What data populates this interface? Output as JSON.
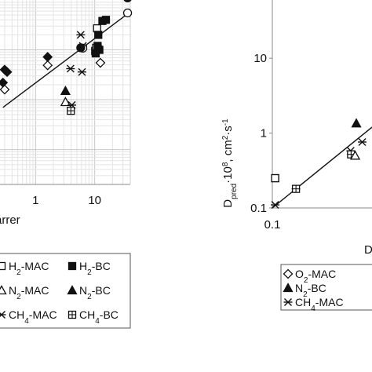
{
  "chart_data": [
    {
      "type": "scatter",
      "scale": "log-log",
      "grid": true,
      "xlabel": "arrer",
      "ylabel": "",
      "xlim": [
        0.25,
        40
      ],
      "ylim": [
        0.02,
        100
      ],
      "x_ticks": [
        {
          "value": 1,
          "label": "1"
        },
        {
          "value": 10,
          "label": "10"
        }
      ],
      "y_ticks": [],
      "trendline": {
        "x": [
          0.28,
          40
        ],
        "y": [
          0.7,
          58
        ]
      },
      "series": [
        {
          "name": "H2-MAC",
          "label_parts": [
            "H",
            "2",
            "-MAC"
          ],
          "marker": "square-open",
          "points": [
            [
              11,
              27
            ],
            [
              10.2,
              9.5
            ],
            [
              10.6,
              11
            ]
          ]
        },
        {
          "name": "H2-BC",
          "label_parts": [
            "H",
            "2",
            "-BC"
          ],
          "marker": "square-filled",
          "points": [
            [
              10.4,
              8.5
            ],
            [
              11.2,
              12
            ],
            [
              12,
              10
            ],
            [
              13.5,
              38
            ],
            [
              15.5,
              40
            ],
            [
              11.5,
              20
            ]
          ]
        },
        {
          "name": "N2-MAC",
          "label_parts": [
            "N",
            "2",
            "-MAC"
          ],
          "marker": "triangle-open",
          "points": [
            [
              3.2,
              0.9
            ]
          ]
        },
        {
          "name": "N2-BC",
          "label_parts": [
            "N",
            "2",
            "-BC"
          ],
          "marker": "triangle-filled",
          "points": [
            [
              3.2,
              1.5
            ]
          ]
        },
        {
          "name": "CH4-MAC",
          "label_parts": [
            "CH",
            "4",
            "-MAC"
          ],
          "marker": "star-x",
          "points": [
            [
              5.8,
              20
            ],
            [
              6.3,
              12
            ],
            [
              3.9,
              4.2
            ],
            [
              6.1,
              3.6
            ],
            [
              4.1,
              0.78
            ]
          ]
        },
        {
          "name": "CH4-BC",
          "label_parts": [
            "CH",
            "4",
            "-BC"
          ],
          "marker": "square-hatched",
          "points": [
            [
              3.95,
              0.6
            ]
          ]
        },
        {
          "name": "",
          "marker": "diamond-open",
          "points": [
            [
              0.3,
              1.6
            ],
            [
              1.6,
              4.9
            ],
            [
              12.5,
              5.5
            ]
          ]
        },
        {
          "name": "",
          "marker": "diamond-filled",
          "points": [
            [
              0.28,
              2.2
            ],
            [
              0.33,
              3.6
            ],
            [
              1.6,
              7.2
            ],
            [
              0.3,
              4.0
            ]
          ]
        },
        {
          "name": "",
          "marker": "circle-open",
          "points": [
            [
              36,
              55
            ],
            [
              6.3,
              10.8
            ]
          ]
        },
        {
          "name": "",
          "marker": "circle-filled",
          "points": [
            [
              36,
              110
            ],
            [
              11.5,
              11
            ],
            [
              5.8,
              11
            ]
          ]
        }
      ]
    },
    {
      "type": "scatter",
      "scale": "log-log",
      "grid": false,
      "xlabel": "D",
      "ylabel": "D_pred·10^8, cm^2·s^-1",
      "ylabel_parts": [
        "D",
        "pred",
        "·10",
        "8",
        ", cm",
        "2",
        "·s",
        "-1"
      ],
      "xlim": [
        0.1,
        1.5
      ],
      "ylim": [
        0.1,
        60
      ],
      "x_ticks": [
        {
          "value": 0.1,
          "label": "0.1"
        }
      ],
      "y_ticks": [
        {
          "value": 10,
          "label": "10"
        },
        {
          "value": 1,
          "label": "1"
        },
        {
          "value": 0.1,
          "label": "0.1"
        }
      ],
      "trendline": {
        "x": [
          0.1,
          1.5
        ],
        "y": [
          0.1,
          1.2
        ]
      },
      "series": [
        {
          "name": "O2-MAC",
          "label_parts": [
            "O",
            "2",
            "-MAC"
          ],
          "marker": "diamond-open",
          "points": []
        },
        {
          "name": "N2-BC",
          "label_parts": [
            "N",
            "2",
            "-BC"
          ],
          "marker": "triangle-filled",
          "points": [
            [
              0.98,
              1.35
            ]
          ]
        },
        {
          "name": "CH4-MAC",
          "label_parts": [
            "CH",
            "4",
            "-MAC"
          ],
          "marker": "star-x",
          "points": [
            [
              0.108,
              0.11
            ],
            [
              0.19,
              0.18
            ],
            [
              0.84,
              0.58
            ],
            [
              1.15,
              0.76
            ]
          ]
        },
        {
          "name": "",
          "marker": "square-hatched",
          "points": [
            [
              0.108,
              0.25
            ],
            [
              0.19,
              0.18
            ],
            [
              0.85,
              0.52
            ]
          ]
        },
        {
          "name": "",
          "marker": "triangle-open",
          "points": [
            [
              0.95,
              0.5
            ]
          ]
        },
        {
          "name": "",
          "marker": "square-open",
          "points": [
            [
              0.108,
              0.25
            ]
          ]
        }
      ]
    }
  ]
}
